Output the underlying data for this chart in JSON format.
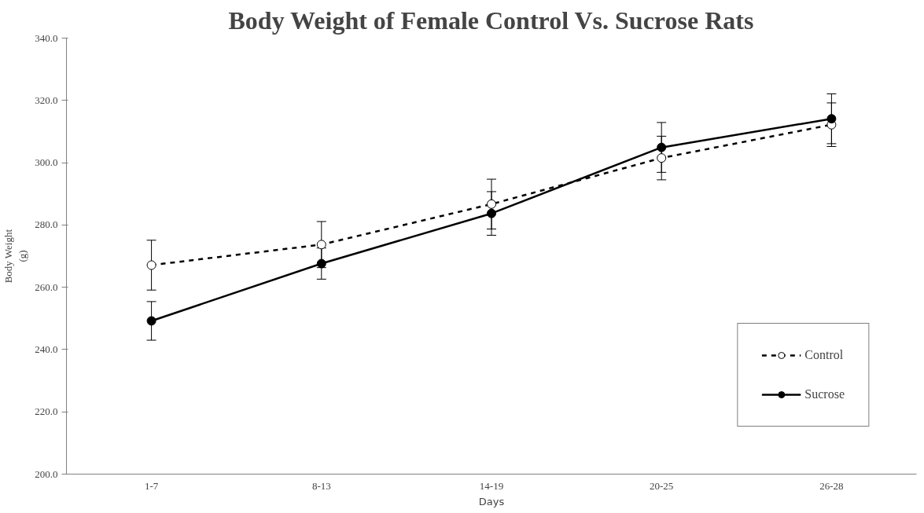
{
  "chart_data": {
    "type": "line",
    "title": "Body Weight of Female Control Vs. Sucrose Rats",
    "xlabel": "Days",
    "ylabel": "Body Weight\n(g)",
    "categories": [
      "1-7",
      "8-13",
      "14-19",
      "20-25",
      "26-28"
    ],
    "series": [
      {
        "name": "Control",
        "color": "#000000",
        "line_style": "dashed",
        "values": [
          267.1,
          273.7,
          286.7,
          301.5,
          312.2
        ],
        "errors": [
          8,
          7.4,
          8,
          7,
          7
        ]
      },
      {
        "name": "Sucrose",
        "color": "#000000",
        "line_style": "solid",
        "values": [
          249.2,
          267.6,
          283.7,
          304.9,
          314.1
        ],
        "errors": [
          6.2,
          5,
          7,
          8,
          8
        ]
      }
    ],
    "ylim": [
      200,
      340
    ],
    "yticks": [
      {
        "value": 200,
        "label": "200.0"
      },
      {
        "value": 220,
        "label": "220.0"
      },
      {
        "value": 240,
        "label": "240.0"
      },
      {
        "value": 260,
        "label": "260.0"
      },
      {
        "value": 280,
        "label": "280.0"
      },
      {
        "value": 300,
        "label": "300.0"
      },
      {
        "value": 320,
        "label": "320.0"
      },
      {
        "value": 340,
        "label": "340.0"
      }
    ],
    "marker": "circle",
    "grid": false,
    "legend": "bottom right"
  }
}
